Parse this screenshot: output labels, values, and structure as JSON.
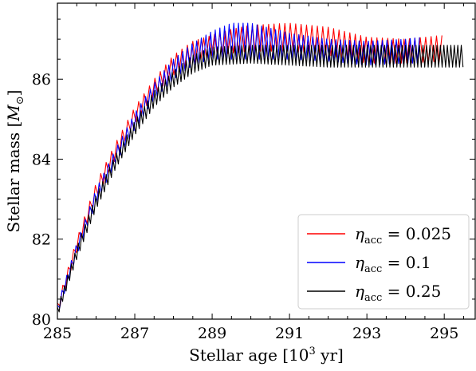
{
  "chart_data": {
    "type": "line",
    "xlabel": "Stellar age [10",
    "xlabel_sup": "3",
    "xlabel_tail": " yr]",
    "ylabel": "Stellar mass [",
    "ylabel_sym": "M",
    "ylabel_sub": "⊙",
    "ylabel_tail": "]",
    "xlim": [
      285,
      295.8
    ],
    "ylim": [
      80,
      87.9
    ],
    "xticks": [
      285,
      287,
      289,
      291,
      293,
      295
    ],
    "xtick_labels": [
      "285",
      "287",
      "289",
      "291",
      "293",
      "295"
    ],
    "yticks": [
      80,
      82,
      84,
      86
    ],
    "ytick_labels": [
      "80",
      "82",
      "84",
      "86"
    ],
    "grid": false,
    "legend_placement": "lower right",
    "series": [
      {
        "name": "η_acc = 0.025",
        "legend_eta": "η",
        "legend_sub": "acc",
        "legend_value": " = 0.025",
        "color": "#ff0000",
        "x_start": 285.0,
        "x_end": 295.0,
        "oscillation_period": 0.14,
        "envelope": [
          {
            "x": 285.0,
            "min": 80.1,
            "max": 80.4
          },
          {
            "x": 285.5,
            "min": 81.7,
            "max": 82.0
          },
          {
            "x": 286.0,
            "min": 83.0,
            "max": 83.4
          },
          {
            "x": 286.5,
            "min": 84.0,
            "max": 84.4
          },
          {
            "x": 287.0,
            "min": 84.9,
            "max": 85.3
          },
          {
            "x": 287.5,
            "min": 85.6,
            "max": 86.0
          },
          {
            "x": 288.0,
            "min": 86.1,
            "max": 86.6
          },
          {
            "x": 288.5,
            "min": 86.4,
            "max": 86.95
          },
          {
            "x": 289.0,
            "min": 86.6,
            "max": 87.1
          },
          {
            "x": 289.5,
            "min": 86.65,
            "max": 87.25
          },
          {
            "x": 290.0,
            "min": 86.7,
            "max": 87.35
          },
          {
            "x": 291.0,
            "min": 86.7,
            "max": 87.4
          },
          {
            "x": 292.0,
            "min": 86.6,
            "max": 87.3
          },
          {
            "x": 293.0,
            "min": 86.4,
            "max": 87.05
          },
          {
            "x": 294.0,
            "min": 86.4,
            "max": 87.0
          },
          {
            "x": 295.0,
            "min": 86.45,
            "max": 87.1
          }
        ]
      },
      {
        "name": "η_acc = 0.1",
        "legend_eta": "η",
        "legend_sub": "acc",
        "legend_value": " = 0.1",
        "color": "#0000ff",
        "x_start": 285.0,
        "x_end": 294.4,
        "oscillation_period": 0.12,
        "envelope": [
          {
            "x": 285.0,
            "min": 80.1,
            "max": 80.35
          },
          {
            "x": 285.5,
            "min": 81.6,
            "max": 81.9
          },
          {
            "x": 286.0,
            "min": 82.9,
            "max": 83.25
          },
          {
            "x": 286.5,
            "min": 83.9,
            "max": 84.25
          },
          {
            "x": 287.0,
            "min": 84.75,
            "max": 85.15
          },
          {
            "x": 287.5,
            "min": 85.5,
            "max": 85.9
          },
          {
            "x": 288.0,
            "min": 86.0,
            "max": 86.5
          },
          {
            "x": 288.5,
            "min": 86.35,
            "max": 86.9
          },
          {
            "x": 289.0,
            "min": 86.5,
            "max": 87.2
          },
          {
            "x": 289.5,
            "min": 86.5,
            "max": 87.4
          },
          {
            "x": 290.0,
            "min": 86.5,
            "max": 87.4
          },
          {
            "x": 291.0,
            "min": 86.5,
            "max": 87.15
          },
          {
            "x": 292.0,
            "min": 86.45,
            "max": 87.0
          },
          {
            "x": 293.0,
            "min": 86.35,
            "max": 86.95
          },
          {
            "x": 294.0,
            "min": 86.4,
            "max": 87.0
          },
          {
            "x": 294.4,
            "min": 86.4,
            "max": 87.05
          }
        ]
      },
      {
        "name": "η_acc = 0.25",
        "legend_eta": "η",
        "legend_sub": "acc",
        "legend_value": " = 0.25",
        "color": "#000000",
        "x_start": 285.0,
        "x_end": 295.5,
        "oscillation_period": 0.09,
        "envelope": [
          {
            "x": 285.0,
            "min": 80.05,
            "max": 80.3
          },
          {
            "x": 285.5,
            "min": 81.5,
            "max": 81.8
          },
          {
            "x": 286.0,
            "min": 82.75,
            "max": 83.1
          },
          {
            "x": 286.5,
            "min": 83.75,
            "max": 84.1
          },
          {
            "x": 287.0,
            "min": 84.6,
            "max": 84.95
          },
          {
            "x": 287.5,
            "min": 85.3,
            "max": 85.7
          },
          {
            "x": 288.0,
            "min": 85.8,
            "max": 86.2
          },
          {
            "x": 288.5,
            "min": 86.15,
            "max": 86.6
          },
          {
            "x": 289.0,
            "min": 86.35,
            "max": 86.8
          },
          {
            "x": 290.0,
            "min": 86.4,
            "max": 86.85
          },
          {
            "x": 291.0,
            "min": 86.35,
            "max": 86.85
          },
          {
            "x": 292.0,
            "min": 86.3,
            "max": 86.85
          },
          {
            "x": 293.0,
            "min": 86.3,
            "max": 86.85
          },
          {
            "x": 294.0,
            "min": 86.3,
            "max": 86.85
          },
          {
            "x": 295.5,
            "min": 86.3,
            "max": 86.85
          }
        ]
      }
    ]
  }
}
